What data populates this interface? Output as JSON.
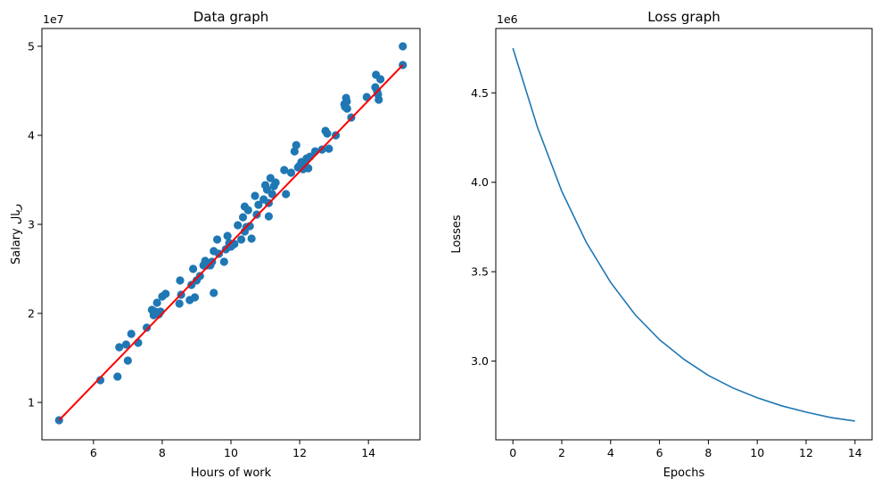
{
  "chart_data": [
    {
      "type": "scatter",
      "title": "Data graph",
      "xlabel": "Hours of work",
      "ylabel": "Salary ريال",
      "offset_text": "1e7",
      "xlim": [
        4.5,
        15.5
      ],
      "ylim": [
        0.58,
        5.2
      ],
      "xticks": [
        6,
        8,
        10,
        12,
        14
      ],
      "yticks": [
        1,
        2,
        3,
        4,
        5
      ],
      "grid": false,
      "colors": {
        "points": "#1f77b4",
        "fit_line": "#ff0000"
      },
      "fit_line": {
        "x": [
          5.0,
          15.0
        ],
        "y": [
          0.8,
          4.79
        ]
      },
      "points": {
        "x": [
          5.0,
          6.2,
          6.7,
          6.75,
          6.95,
          7.0,
          7.1,
          7.3,
          7.55,
          7.7,
          7.75,
          7.8,
          7.85,
          7.9,
          7.95,
          8.0,
          8.1,
          8.5,
          8.52,
          8.55,
          8.8,
          8.85,
          8.9,
          8.95,
          9.0,
          9.1,
          9.2,
          9.25,
          9.3,
          9.4,
          9.45,
          9.5,
          9.5,
          9.6,
          9.65,
          9.8,
          9.85,
          9.9,
          9.95,
          10.0,
          10.1,
          10.2,
          10.3,
          10.35,
          10.4,
          10.4,
          10.45,
          10.5,
          10.55,
          10.6,
          10.7,
          10.75,
          10.8,
          10.95,
          11.0,
          11.05,
          11.1,
          11.1,
          11.15,
          11.2,
          11.25,
          11.3,
          11.55,
          11.6,
          11.75,
          11.85,
          11.9,
          11.95,
          12.0,
          12.05,
          12.1,
          12.15,
          12.2,
          12.25,
          12.3,
          12.45,
          12.65,
          12.75,
          12.8,
          12.85,
          13.05,
          13.3,
          13.32,
          13.35,
          13.37,
          13.38,
          13.5,
          13.95,
          14.2,
          14.22,
          14.25,
          14.28,
          14.3,
          14.35,
          15.0,
          15.0
        ],
        "y": [
          0.8,
          1.25,
          1.29,
          1.62,
          1.65,
          1.47,
          1.77,
          1.67,
          1.84,
          2.04,
          1.98,
          2.02,
          2.12,
          1.99,
          2.02,
          2.19,
          2.22,
          2.11,
          2.37,
          2.21,
          2.15,
          2.32,
          2.5,
          2.18,
          2.37,
          2.42,
          2.54,
          2.59,
          2.54,
          2.54,
          2.58,
          2.23,
          2.7,
          2.83,
          2.67,
          2.58,
          2.72,
          2.87,
          2.79,
          2.75,
          2.78,
          2.99,
          2.83,
          3.08,
          3.2,
          2.92,
          2.97,
          3.16,
          2.98,
          2.84,
          3.32,
          3.11,
          3.22,
          3.28,
          3.44,
          3.39,
          3.24,
          3.09,
          3.52,
          3.34,
          3.43,
          3.47,
          3.61,
          3.34,
          3.58,
          3.82,
          3.89,
          3.64,
          3.66,
          3.7,
          3.62,
          3.68,
          3.74,
          3.63,
          3.76,
          3.82,
          3.84,
          4.05,
          4.02,
          3.85,
          4.0,
          4.35,
          4.32,
          4.42,
          4.38,
          4.3,
          4.2,
          4.43,
          4.54,
          4.68,
          4.5,
          4.46,
          4.4,
          4.63,
          4.79,
          5.0
        ]
      }
    },
    {
      "type": "line",
      "title": "Loss graph",
      "xlabel": "Epochs",
      "ylabel": "Losses",
      "offset_text": "1e6",
      "xlim": [
        -0.7,
        14.7
      ],
      "ylim": [
        2.56,
        4.86
      ],
      "xticks": [
        0,
        2,
        4,
        6,
        8,
        10,
        12,
        14
      ],
      "yticks": [
        3.0,
        3.5,
        4.0,
        4.5
      ],
      "ytick_labels": [
        "3.0",
        "3.5",
        "4.0",
        "4.5"
      ],
      "grid": false,
      "colors": {
        "line": "#1f77b4"
      },
      "series": [
        {
          "x": [
            0,
            1,
            2,
            3,
            4,
            5,
            6,
            7,
            8,
            9,
            10,
            11,
            12,
            13,
            14
          ],
          "values": [
            4.75,
            4.31,
            3.95,
            3.665,
            3.44,
            3.26,
            3.12,
            3.01,
            2.92,
            2.85,
            2.795,
            2.75,
            2.715,
            2.685,
            2.665
          ]
        }
      ]
    }
  ]
}
